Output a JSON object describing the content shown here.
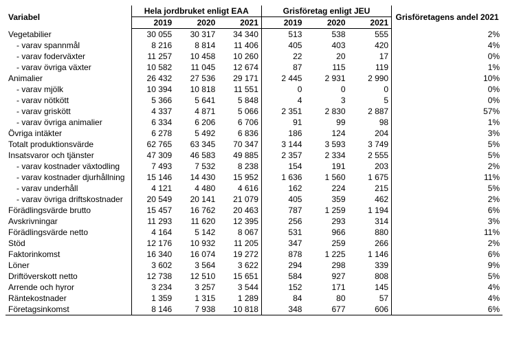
{
  "headers": {
    "variabel": "Variabel",
    "group_eaa": "Hela jordbruket enligt EAA",
    "group_jeu": "Grisföretag enligt JEU",
    "andel": "Grisföretagens andel 2021",
    "y2019": "2019",
    "y2020": "2020",
    "y2021": "2021"
  },
  "rows": [
    {
      "label": "Vegetabilier",
      "indent": false,
      "eaa": [
        "30 055",
        "30 317",
        "34 340"
      ],
      "jeu": [
        "513",
        "538",
        "555"
      ],
      "andel": "2%"
    },
    {
      "label": " - varav spannmål",
      "indent": true,
      "eaa": [
        "8 216",
        "8 814",
        "11 406"
      ],
      "jeu": [
        "405",
        "403",
        "420"
      ],
      "andel": "4%"
    },
    {
      "label": " - varav foderväxter",
      "indent": true,
      "eaa": [
        "11 257",
        "10 458",
        "10 260"
      ],
      "jeu": [
        "22",
        "20",
        "17"
      ],
      "andel": "0%"
    },
    {
      "label": " - varav övriga växter",
      "indent": true,
      "eaa": [
        "10 582",
        "11 045",
        "12 674"
      ],
      "jeu": [
        "87",
        "115",
        "119"
      ],
      "andel": "1%"
    },
    {
      "label": "Animalier",
      "indent": false,
      "eaa": [
        "26 432",
        "27 536",
        "29 171"
      ],
      "jeu": [
        "2 445",
        "2 931",
        "2 990"
      ],
      "andel": "10%"
    },
    {
      "label": " - varav mjölk",
      "indent": true,
      "eaa": [
        "10 394",
        "10 818",
        "11 551"
      ],
      "jeu": [
        "0",
        "0",
        "0"
      ],
      "andel": "0%"
    },
    {
      "label": " - varav nötkött",
      "indent": true,
      "eaa": [
        "5 366",
        "5 641",
        "5 848"
      ],
      "jeu": [
        "4",
        "3",
        "5"
      ],
      "andel": "0%"
    },
    {
      "label": " - varav griskött",
      "indent": true,
      "eaa": [
        "4 337",
        "4 871",
        "5 066"
      ],
      "jeu": [
        "2 351",
        "2 830",
        "2 887"
      ],
      "andel": "57%"
    },
    {
      "label": " - varav övriga animalier",
      "indent": true,
      "eaa": [
        "6 334",
        "6 206",
        "6 706"
      ],
      "jeu": [
        "91",
        "99",
        "98"
      ],
      "andel": "1%"
    },
    {
      "label": "Övriga intäkter",
      "indent": false,
      "eaa": [
        "6 278",
        "5 492",
        "6 836"
      ],
      "jeu": [
        "186",
        "124",
        "204"
      ],
      "andel": "3%"
    },
    {
      "label": "Totalt produktionsvärde",
      "indent": false,
      "eaa": [
        "62 765",
        "63 345",
        "70 347"
      ],
      "jeu": [
        "3 144",
        "3 593",
        "3 749"
      ],
      "andel": "5%"
    },
    {
      "label": "Insatsvaror och tjänster",
      "indent": false,
      "eaa": [
        "47 309",
        "46 583",
        "49 885"
      ],
      "jeu": [
        "2 357",
        "2 334",
        "2 555"
      ],
      "andel": "5%"
    },
    {
      "label": " - varav kostnader växtodling",
      "indent": true,
      "eaa": [
        "7 493",
        "7 532",
        "8 238"
      ],
      "jeu": [
        "154",
        "191",
        "203"
      ],
      "andel": "2%"
    },
    {
      "label": " - varav kostnader djurhållning",
      "indent": true,
      "eaa": [
        "15 146",
        "14 430",
        "15 952"
      ],
      "jeu": [
        "1 636",
        "1 560",
        "1 675"
      ],
      "andel": "11%"
    },
    {
      "label": " - varav underhåll",
      "indent": true,
      "eaa": [
        "4 121",
        "4 480",
        "4 616"
      ],
      "jeu": [
        "162",
        "224",
        "215"
      ],
      "andel": "5%"
    },
    {
      "label": " - varav övriga driftskostnader",
      "indent": true,
      "eaa": [
        "20 549",
        "20 141",
        "21 079"
      ],
      "jeu": [
        "405",
        "359",
        "462"
      ],
      "andel": "2%"
    },
    {
      "label": "Förädlingsvärde brutto",
      "indent": false,
      "eaa": [
        "15 457",
        "16 762",
        "20 463"
      ],
      "jeu": [
        "787",
        "1 259",
        "1 194"
      ],
      "andel": "6%"
    },
    {
      "label": "Avskrivningar",
      "indent": false,
      "eaa": [
        "11 293",
        "11 620",
        "12 395"
      ],
      "jeu": [
        "256",
        "293",
        "314"
      ],
      "andel": "3%"
    },
    {
      "label": "Förädlingsvärde netto",
      "indent": false,
      "eaa": [
        "4 164",
        "5 142",
        "8 067"
      ],
      "jeu": [
        "531",
        "966",
        "880"
      ],
      "andel": "11%"
    },
    {
      "label": "Stöd",
      "indent": false,
      "eaa": [
        "12 176",
        "10 932",
        "11 205"
      ],
      "jeu": [
        "347",
        "259",
        "266"
      ],
      "andel": "2%"
    },
    {
      "label": "Faktorinkomst",
      "indent": false,
      "eaa": [
        "16 340",
        "16 074",
        "19 272"
      ],
      "jeu": [
        "878",
        "1 225",
        "1 146"
      ],
      "andel": "6%"
    },
    {
      "label": "Löner",
      "indent": false,
      "eaa": [
        "3 602",
        "3 564",
        "3 622"
      ],
      "jeu": [
        "294",
        "298",
        "339"
      ],
      "andel": "9%"
    },
    {
      "label": "Driftöverskott netto",
      "indent": false,
      "eaa": [
        "12 738",
        "12 510",
        "15 651"
      ],
      "jeu": [
        "584",
        "927",
        "808"
      ],
      "andel": "5%"
    },
    {
      "label": "Arrende och hyror",
      "indent": false,
      "eaa": [
        "3 234",
        "3 257",
        "3 544"
      ],
      "jeu": [
        "152",
        "171",
        "145"
      ],
      "andel": "4%"
    },
    {
      "label": "Räntekostnader",
      "indent": false,
      "eaa": [
        "1 359",
        "1 315",
        "1 289"
      ],
      "jeu": [
        "84",
        "80",
        "57"
      ],
      "andel": "4%"
    },
    {
      "label": "Företagsinkomst",
      "indent": false,
      "eaa": [
        "8 146",
        "7 938",
        "10 818"
      ],
      "jeu": [
        "348",
        "677",
        "606"
      ],
      "andel": "6%"
    }
  ]
}
